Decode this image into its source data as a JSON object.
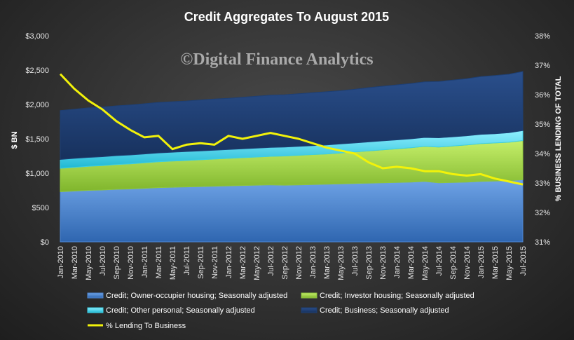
{
  "chart_data": {
    "type": "area",
    "title": "Credit Aggregates To August 2015",
    "watermark": "©Digital Finance Analytics",
    "ylabel_left": "$ BN",
    "ylabel_right": "% BUSINESS LENDING OF TOTAL",
    "ylim_left": [
      0,
      3000
    ],
    "ylim_right": [
      31,
      38
    ],
    "yticks_left": [
      "$0",
      "$500",
      "$1,000",
      "$1,500",
      "$2,000",
      "$2,500",
      "$3,000"
    ],
    "yticks_right": [
      "31%",
      "32%",
      "33%",
      "34%",
      "35%",
      "36%",
      "37%",
      "38%"
    ],
    "x_labels": [
      "Jan-2010",
      "Mar-2010",
      "May-2010",
      "Jul-2010",
      "Sep-2010",
      "Nov-2010",
      "Jan-2011",
      "Mar-2011",
      "May-2011",
      "Jul-2011",
      "Sep-2011",
      "Nov-2011",
      "Jan-2012",
      "Mar-2012",
      "May-2012",
      "Jul-2012",
      "Sep-2012",
      "Nov-2012",
      "Jan-2013",
      "Mar-2013",
      "May-2013",
      "Jul-2013",
      "Sep-2013",
      "Nov-2013",
      "Jan-2014",
      "Mar-2014",
      "May-2014",
      "Jul-2014",
      "Sep-2014",
      "Nov-2014",
      "Jan-2015",
      "Mar-2015",
      "May-2015",
      "Jul-2015"
    ],
    "grid": false,
    "legend_position": "bottom",
    "stacked_series": [
      {
        "name": "Credit; Owner-occupier housing; Seasonally adjusted",
        "color": "#4f86d0",
        "values": [
          730,
          740,
          750,
          755,
          765,
          770,
          780,
          790,
          795,
          800,
          805,
          810,
          815,
          820,
          825,
          830,
          825,
          830,
          835,
          840,
          845,
          850,
          855,
          860,
          865,
          870,
          880,
          860,
          865,
          870,
          880,
          885,
          890,
          905
        ]
      },
      {
        "name": "Credit; Investor housing; Seasonally adjusted",
        "color": "#8fc63f",
        "values": [
          340,
          345,
          350,
          355,
          360,
          365,
          370,
          375,
          380,
          385,
          390,
          395,
          400,
          405,
          410,
          415,
          425,
          430,
          435,
          440,
          450,
          460,
          470,
          480,
          490,
          500,
          510,
          520,
          530,
          540,
          550,
          555,
          560,
          570
        ]
      },
      {
        "name": "Credit; Other personal; Seasonally adjusted",
        "color": "#3fcfe4",
        "values": [
          130,
          130,
          130,
          130,
          130,
          130,
          130,
          130,
          130,
          130,
          130,
          130,
          130,
          130,
          130,
          130,
          130,
          130,
          130,
          130,
          130,
          130,
          130,
          130,
          130,
          130,
          130,
          135,
          135,
          135,
          135,
          135,
          140,
          145
        ]
      },
      {
        "name": "Credit; Business; Seasonally adjusted",
        "color": "#1e3f73",
        "values": [
          710,
          715,
          720,
          722,
          725,
          728,
          730,
          735,
          735,
          735,
          740,
          745,
          745,
          750,
          755,
          760,
          760,
          765,
          770,
          775,
          775,
          780,
          790,
          795,
          800,
          805,
          810,
          820,
          825,
          830,
          840,
          845,
          850,
          860
        ]
      }
    ],
    "line_series": {
      "name": "% Lending To Business",
      "color": "#f2f20a",
      "axis": "right",
      "values": [
        36.7,
        36.2,
        35.8,
        35.5,
        35.1,
        34.8,
        34.55,
        34.6,
        34.15,
        34.3,
        34.35,
        34.3,
        34.6,
        34.5,
        34.6,
        34.7,
        34.6,
        34.5,
        34.35,
        34.2,
        34.1,
        34.0,
        33.7,
        33.5,
        33.55,
        33.5,
        33.4,
        33.4,
        33.3,
        33.25,
        33.3,
        33.15,
        33.05,
        32.95
      ]
    }
  }
}
